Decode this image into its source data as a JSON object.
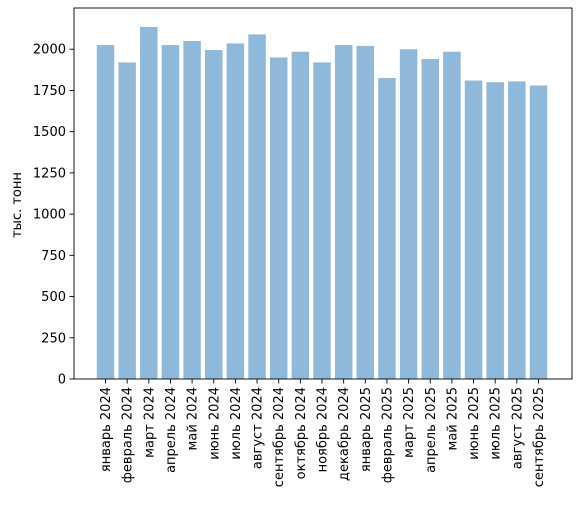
{
  "chart_data": {
    "type": "bar",
    "ylabel": "тыс. тонн",
    "xlabel": "",
    "title": "",
    "ylim": [
      0,
      2250
    ],
    "yticks": [
      0,
      250,
      500,
      750,
      1000,
      1250,
      1500,
      1750,
      2000
    ],
    "grid": false,
    "bar_color": "#8fb9da",
    "categories": [
      "январь 2024",
      "февраль 2024",
      "март 2024",
      "апрель 2024",
      "май 2024",
      "июнь 2024",
      "июль 2024",
      "август 2024",
      "сентябрь 2024",
      "октябрь 2024",
      "ноябрь 2024",
      "декабрь 2024",
      "январь 2025",
      "февраль 2025",
      "март 2025",
      "апрель 2025",
      "май 2025",
      "июнь 2025",
      "июль 2025",
      "август 2025",
      "сентябрь 2025"
    ],
    "values": [
      2025,
      1920,
      2135,
      2025,
      2050,
      1995,
      2035,
      2090,
      1950,
      1985,
      1920,
      2025,
      2020,
      1825,
      2000,
      1940,
      1985,
      1810,
      1800,
      1805,
      1780
    ]
  }
}
